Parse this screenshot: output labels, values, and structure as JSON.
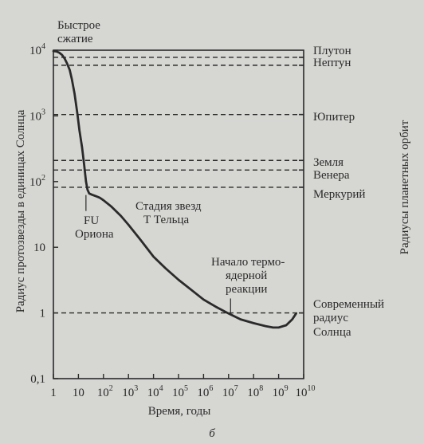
{
  "chart_data": {
    "type": "line",
    "xlabel": "Время, годы",
    "ylabel": "Радиус протозвезды в единицах Солнца",
    "right_axis_label": "Радиусы планетных орбит",
    "figure_label": "б",
    "x_scale": "log",
    "y_scale": "log",
    "xlim": [
      1,
      10000000000
    ],
    "ylim": [
      0.1,
      10000
    ],
    "x_ticks": [
      {
        "base": "1",
        "exp": ""
      },
      {
        "base": "10",
        "exp": ""
      },
      {
        "base": "10",
        "exp": "2"
      },
      {
        "base": "10",
        "exp": "3"
      },
      {
        "base": "10",
        "exp": "4"
      },
      {
        "base": "10",
        "exp": "5"
      },
      {
        "base": "10",
        "exp": "6"
      },
      {
        "base": "10",
        "exp": "7"
      },
      {
        "base": "10",
        "exp": "8"
      },
      {
        "base": "10",
        "exp": "9"
      },
      {
        "base": "10",
        "exp": "10"
      }
    ],
    "y_ticks": [
      {
        "base": "0,1",
        "exp": ""
      },
      {
        "base": "1",
        "exp": ""
      },
      {
        "base": "10",
        "exp": ""
      },
      {
        "base": "10",
        "exp": "2"
      },
      {
        "base": "10",
        "exp": "3"
      },
      {
        "base": "10",
        "exp": "4"
      }
    ],
    "series": [
      {
        "x": [
          1,
          1.3,
          1.7,
          2.2,
          2.8,
          3.5,
          4.5,
          5.5,
          7,
          9,
          11,
          14,
          17,
          20,
          23,
          27,
          35,
          50,
          70,
          100,
          200,
          500,
          1000,
          3000,
          10000,
          30000,
          100000,
          300000,
          1000000,
          3000000,
          10000000,
          30000000,
          100000000,
          300000000,
          600000000,
          1000000000,
          2000000000,
          3500000000,
          5000000000
        ],
        "y": [
          9700,
          9600,
          9200,
          8500,
          7500,
          6300,
          5000,
          3600,
          2200,
          1100,
          600,
          330,
          180,
          100,
          75,
          66,
          63,
          60,
          57,
          52,
          42,
          30,
          22,
          13,
          7.2,
          4.8,
          3.2,
          2.3,
          1.6,
          1.25,
          0.98,
          0.8,
          0.7,
          0.63,
          0.6,
          0.6,
          0.65,
          0.8,
          0.98
        ]
      }
    ],
    "reference_lines": [
      {
        "label": "Плутон",
        "y": 7800
      },
      {
        "label": "Нептун",
        "y": 5900
      },
      {
        "label": "Юпитер",
        "y": 1050
      },
      {
        "label": "Земля",
        "y": 210
      },
      {
        "label": "Венера",
        "y": 150
      },
      {
        "label": "Меркурий",
        "y": 82
      },
      {
        "label": "Современный радиус Солнца",
        "y": 1
      }
    ],
    "annotations": [
      {
        "text": "Быстрое сжатие"
      },
      {
        "text": "FU Ориона"
      },
      {
        "text": "Стадия звезд Т Тельца"
      },
      {
        "text": "Начало термоядерной реакции"
      }
    ],
    "labels": {
      "pluto": "Плутон",
      "neptune": "Нептун",
      "jupiter": "Юпитер",
      "earth": "Земля",
      "venus": "Венера",
      "mercury": "Меркурий",
      "sun_1": "Современный",
      "sun_2": "радиус",
      "sun_3": "Солнца",
      "rapid_1": "Быстрое",
      "rapid_2": "сжатие",
      "fu_1": "FU",
      "fu_2": "Ориона",
      "tt_1": "Стадия звезд",
      "tt_2": "Т Тельца",
      "nuc_1": "Начало термо-",
      "nuc_2": "ядерной",
      "nuc_3": "реакции"
    },
    "grid": false,
    "legend": "none",
    "colors": {
      "ink": "#2a2a2a",
      "background": "#d6d7d3"
    }
  }
}
